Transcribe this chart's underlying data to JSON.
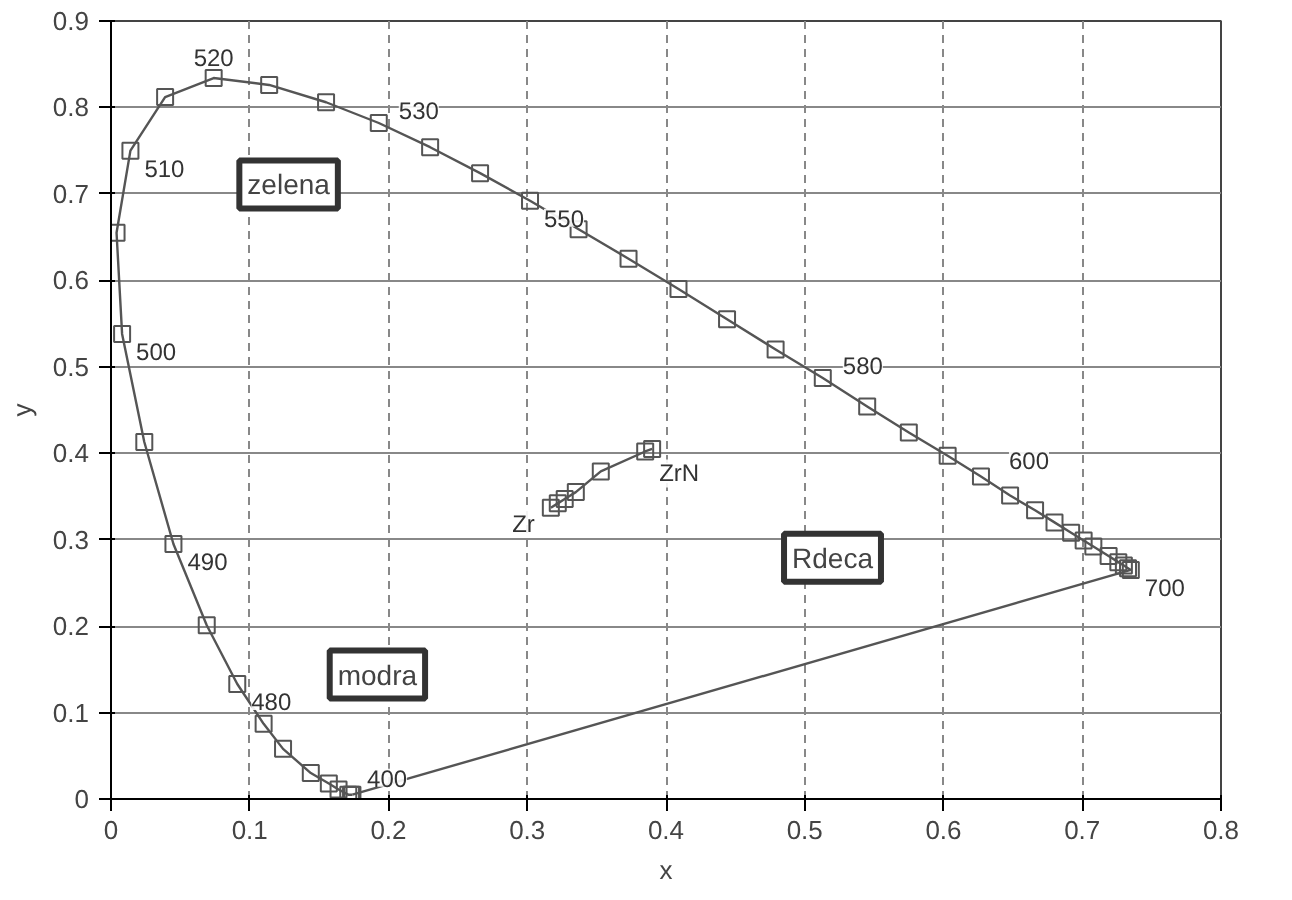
{
  "chart_data": {
    "type": "line",
    "xlabel": "x",
    "ylabel": "y",
    "xlim": [
      0,
      0.8
    ],
    "ylim": [
      0,
      0.9
    ],
    "xticks": [
      0,
      0.1,
      0.2,
      0.3,
      0.4,
      0.5,
      0.6,
      0.7,
      0.8
    ],
    "yticks": [
      0,
      0.1,
      0.2,
      0.3,
      0.4,
      0.5,
      0.6,
      0.7,
      0.8,
      0.9
    ],
    "grid": true,
    "line_style": "solid",
    "series": [
      {
        "color": "#555555",
        "marker": "square",
        "x": [
          0.174,
          0.173,
          0.171,
          0.164,
          0.157,
          0.144,
          0.124,
          0.11,
          0.091,
          0.069,
          0.045,
          0.024,
          0.008,
          0.004,
          0.014,
          0.039,
          0.074,
          0.114,
          0.155,
          0.193,
          0.23,
          0.266,
          0.302,
          0.337,
          0.373,
          0.409,
          0.444,
          0.479,
          0.513,
          0.545,
          0.575,
          0.603,
          0.627,
          0.648,
          0.666,
          0.68,
          0.692,
          0.701,
          0.708,
          0.719,
          0.726,
          0.73,
          0.733,
          0.735
        ],
        "values": [
          0.005,
          0.005,
          0.005,
          0.011,
          0.018,
          0.03,
          0.058,
          0.087,
          0.133,
          0.201,
          0.295,
          0.413,
          0.538,
          0.655,
          0.75,
          0.812,
          0.834,
          0.826,
          0.806,
          0.782,
          0.754,
          0.724,
          0.692,
          0.659,
          0.625,
          0.59,
          0.555,
          0.52,
          0.487,
          0.454,
          0.424,
          0.397,
          0.373,
          0.351,
          0.334,
          0.32,
          0.308,
          0.299,
          0.292,
          0.281,
          0.274,
          0.27,
          0.267,
          0.265
        ]
      },
      {
        "color": "#555555",
        "marker": "none",
        "x": [
          0.174,
          0.735
        ],
        "values": [
          0.005,
          0.265
        ]
      },
      {
        "color": "#555555",
        "marker": "square",
        "x": [
          0.317,
          0.322,
          0.327,
          0.335,
          0.353,
          0.385,
          0.39
        ],
        "values": [
          0.337,
          0.342,
          0.347,
          0.355,
          0.379,
          0.402,
          0.405
        ]
      }
    ],
    "annotations": [
      "zelena",
      "modra",
      "Rdeca",
      {
        "text": "520",
        "x": 0.074,
        "y": 0.834
      },
      {
        "text": "510",
        "x": 0.014,
        "y": 0.75
      },
      {
        "text": "530",
        "x": 0.193,
        "y": 0.782
      },
      {
        "text": "550",
        "x": 0.302,
        "y": 0.692
      },
      {
        "text": "580",
        "x": 0.513,
        "y": 0.487
      },
      {
        "text": "600",
        "x": 0.627,
        "y": 0.373
      },
      {
        "text": "700",
        "x": 0.735,
        "y": 0.265
      },
      {
        "text": "500",
        "x": 0.008,
        "y": 0.538
      },
      {
        "text": "490",
        "x": 0.045,
        "y": 0.295
      },
      {
        "text": "480",
        "x": 0.091,
        "y": 0.133
      },
      {
        "text": "400",
        "x": 0.173,
        "y": 0.005
      },
      {
        "text": "Zr",
        "x": 0.317,
        "y": 0.337
      },
      {
        "text": "ZrN",
        "x": 0.385,
        "y": 0.402
      }
    ]
  }
}
